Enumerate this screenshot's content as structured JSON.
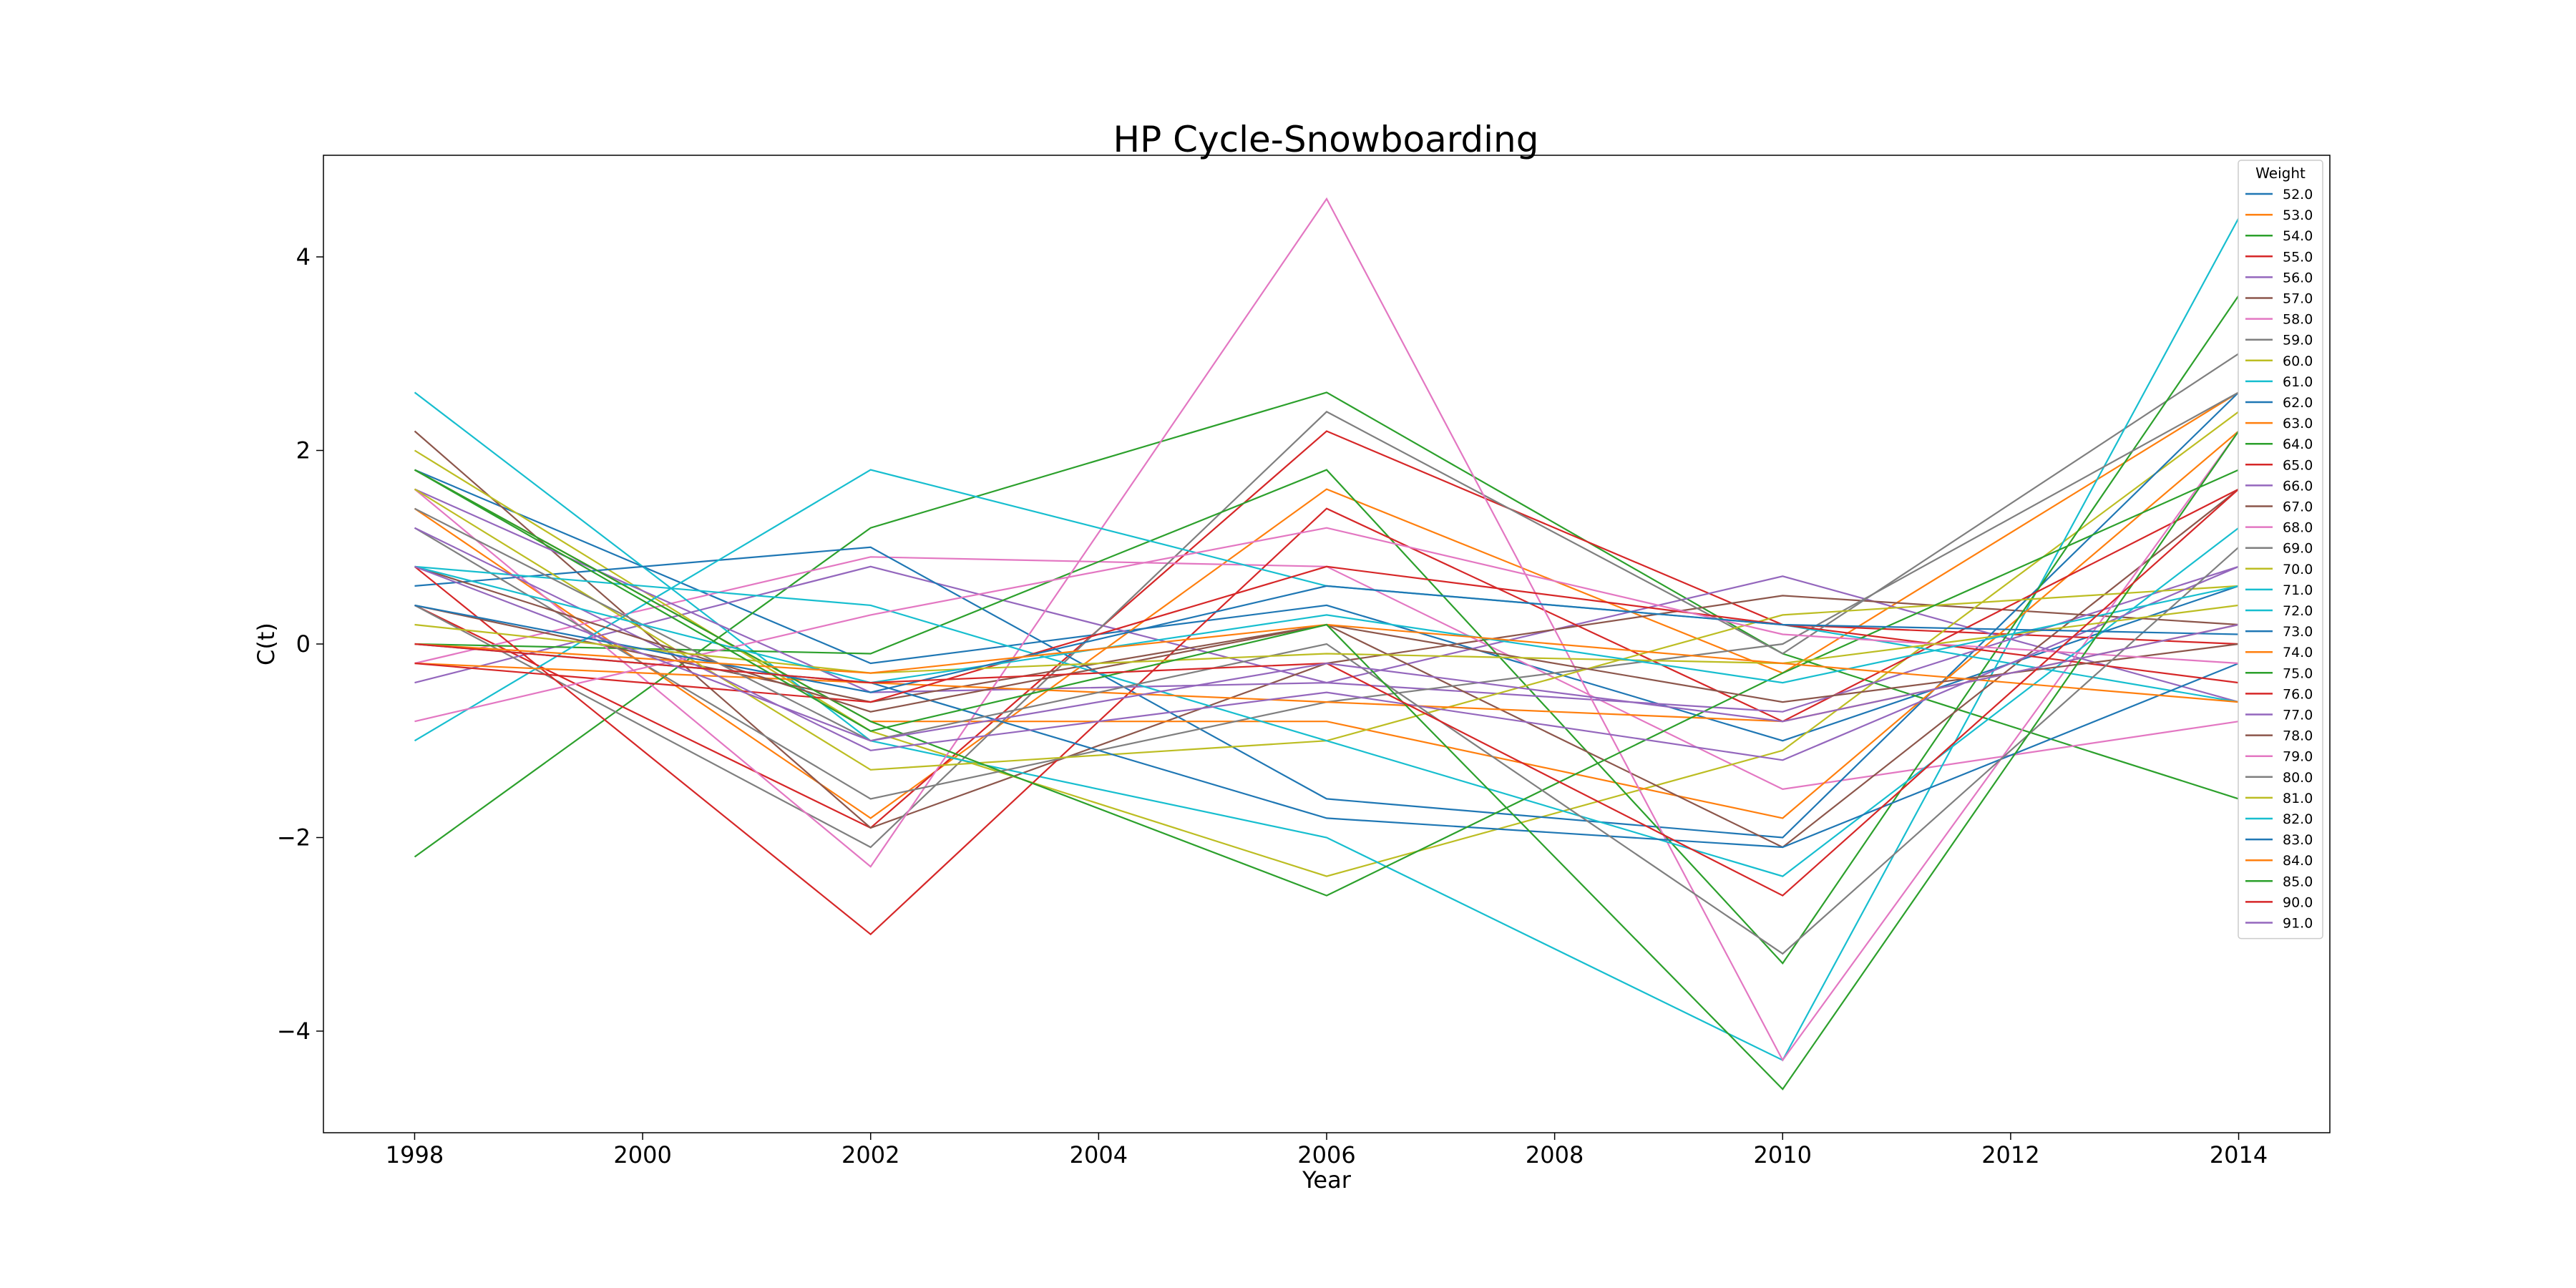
{
  "chart_data": {
    "type": "line",
    "title": "HP Cycle-Snowboarding",
    "xlabel": "Year",
    "ylabel": "C(t)",
    "x": [
      1998,
      2002,
      2006,
      2010,
      2014
    ],
    "xticks": [
      "1998",
      "2000",
      "2002",
      "2004",
      "2006",
      "2008",
      "2010",
      "2012",
      "2014"
    ],
    "yticks": [
      "−4",
      "−2",
      "0",
      "2",
      "4"
    ],
    "xlim": [
      1997.2,
      2014.8
    ],
    "ylim": [
      -5.05,
      5.05
    ],
    "grid": false,
    "legend": {
      "title": "Weight",
      "placement": "top-right"
    },
    "series": [
      {
        "name": "52.0",
        "color": "#1f77b4",
        "values": [
          1.8,
          -0.2,
          0.4,
          -1.0,
          0.6
        ]
      },
      {
        "name": "53.0",
        "color": "#ff7f0e",
        "values": [
          1.4,
          -1.8,
          1.6,
          -0.3,
          2.6
        ]
      },
      {
        "name": "54.0",
        "color": "#2ca02c",
        "values": [
          -2.2,
          1.2,
          2.6,
          -0.1,
          -1.6
        ]
      },
      {
        "name": "55.0",
        "color": "#d62728",
        "values": [
          0.4,
          -1.9,
          2.2,
          0.2,
          0.0
        ]
      },
      {
        "name": "56.0",
        "color": "#9467bd",
        "values": [
          -0.4,
          0.8,
          -0.4,
          0.7,
          -0.6
        ]
      },
      {
        "name": "57.0",
        "color": "#8c564b",
        "values": [
          2.2,
          -1.9,
          -0.2,
          0.5,
          0.2
        ]
      },
      {
        "name": "58.0",
        "color": "#e377c2",
        "values": [
          -0.2,
          0.9,
          0.8,
          -1.5,
          -0.8
        ]
      },
      {
        "name": "59.0",
        "color": "#7f7f7f",
        "values": [
          0.4,
          -2.1,
          2.4,
          -0.1,
          3.0
        ]
      },
      {
        "name": "60.0",
        "color": "#bcbd22",
        "values": [
          2.0,
          -0.9,
          -2.4,
          -1.1,
          2.4
        ]
      },
      {
        "name": "61.0",
        "color": "#17becf",
        "values": [
          2.6,
          -1.0,
          -2.0,
          -4.3,
          4.4
        ]
      },
      {
        "name": "62.0",
        "color": "#1f77b4",
        "values": [
          0.6,
          1.0,
          -1.6,
          -2.0,
          2.6
        ]
      },
      {
        "name": "63.0",
        "color": "#ff7f0e",
        "values": [
          1.8,
          -0.8,
          -0.8,
          -1.8,
          2.2
        ]
      },
      {
        "name": "64.0",
        "color": "#2ca02c",
        "values": [
          0.0,
          -0.1,
          1.8,
          -3.3,
          3.6
        ]
      },
      {
        "name": "65.0",
        "color": "#d62728",
        "values": [
          0.8,
          -3.0,
          1.4,
          -0.8,
          1.6
        ]
      },
      {
        "name": "66.0",
        "color": "#9467bd",
        "values": [
          1.6,
          -0.5,
          -0.4,
          -0.7,
          0.8
        ]
      },
      {
        "name": "67.0",
        "color": "#8c564b",
        "values": [
          0.4,
          -0.6,
          0.2,
          -2.1,
          1.6
        ]
      },
      {
        "name": "68.0",
        "color": "#e377c2",
        "values": [
          1.6,
          -2.3,
          4.6,
          -4.3,
          2.2
        ]
      },
      {
        "name": "69.0",
        "color": "#7f7f7f",
        "values": [
          1.2,
          -1.6,
          -0.6,
          0.0,
          2.6
        ]
      },
      {
        "name": "70.0",
        "color": "#bcbd22",
        "values": [
          1.6,
          -1.3,
          -1.0,
          0.3,
          0.6
        ]
      },
      {
        "name": "71.0",
        "color": "#17becf",
        "values": [
          0.8,
          0.4,
          -1.0,
          -2.4,
          1.2
        ]
      },
      {
        "name": "72.0",
        "color": "#17becf",
        "values": [
          -1.0,
          1.8,
          0.6,
          0.2,
          -0.6
        ]
      },
      {
        "name": "73.0",
        "color": "#1f77b4",
        "values": [
          0.0,
          -0.4,
          -1.8,
          -2.1,
          -0.2
        ]
      },
      {
        "name": "74.0",
        "color": "#ff7f0e",
        "values": [
          -0.2,
          -0.4,
          -0.6,
          -0.8,
          0.2
        ]
      },
      {
        "name": "75.0",
        "color": "#2ca02c",
        "values": [
          1.8,
          -0.8,
          -2.6,
          -0.3,
          1.8
        ]
      },
      {
        "name": "76.0",
        "color": "#d62728",
        "values": [
          -0.2,
          -0.6,
          0.8,
          0.2,
          -0.4
        ]
      },
      {
        "name": "77.0",
        "color": "#9467bd",
        "values": [
          1.2,
          -1.1,
          -0.5,
          -1.2,
          0.8
        ]
      },
      {
        "name": "78.0",
        "color": "#8c564b",
        "values": [
          0.8,
          -0.7,
          0.2,
          -0.6,
          0.0
        ]
      },
      {
        "name": "79.0",
        "color": "#e377c2",
        "values": [
          -0.8,
          0.3,
          1.2,
          0.1,
          -0.2
        ]
      },
      {
        "name": "80.0",
        "color": "#7f7f7f",
        "values": [
          1.4,
          -1.0,
          0.0,
          -3.2,
          1.0
        ]
      },
      {
        "name": "81.0",
        "color": "#bcbd22",
        "values": [
          0.2,
          -0.3,
          -0.1,
          -0.2,
          0.4
        ]
      },
      {
        "name": "82.0",
        "color": "#17becf",
        "values": [
          0.8,
          -0.4,
          0.3,
          -0.4,
          0.6
        ]
      },
      {
        "name": "83.0",
        "color": "#1f77b4",
        "values": [
          0.4,
          -0.5,
          0.6,
          0.2,
          0.1
        ]
      },
      {
        "name": "84.0",
        "color": "#ff7f0e",
        "values": [
          0.0,
          -0.3,
          0.2,
          -0.2,
          -0.6
        ]
      },
      {
        "name": "85.0",
        "color": "#2ca02c",
        "values": [
          1.8,
          -0.9,
          0.2,
          -4.6,
          2.2
        ]
      },
      {
        "name": "90.0",
        "color": "#d62728",
        "values": [
          0.0,
          -0.4,
          -0.2,
          -2.6,
          1.6
        ]
      },
      {
        "name": "91.0",
        "color": "#9467bd",
        "values": [
          0.8,
          -1.0,
          -0.2,
          -0.8,
          0.2
        ]
      }
    ]
  }
}
